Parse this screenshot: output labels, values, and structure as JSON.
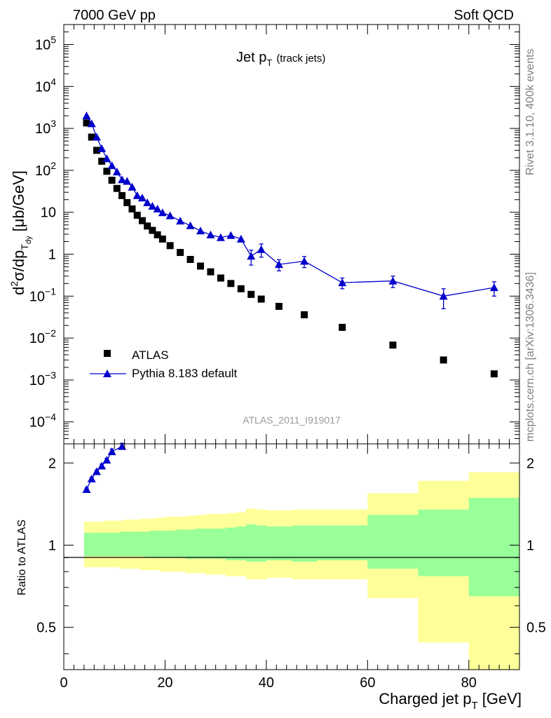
{
  "header": {
    "left": "7000 GeV pp",
    "right": "Soft QCD"
  },
  "side_labels": {
    "rivet": "Rivet 3.1.10,  400k events",
    "url": "mcplots.cern.ch [arXiv:1306.3436]"
  },
  "chart_data": [
    {
      "type": "scatter",
      "panel": "main",
      "title": "Jet p",
      "title_sub": "T",
      "title_note": "(track jets)",
      "analysis_tag": "ATLAS_2011_I919017",
      "ylabel_parts": [
        "d",
        "2",
        "σ/dp",
        "T",
        "dy",
        " [μb/GeV]"
      ],
      "yscale": "log",
      "xlim": [
        0,
        90
      ],
      "ylim": [
        3e-05,
        300000
      ],
      "yticks": [
        {
          "v": 100000,
          "base": "10",
          "exp": "5"
        },
        {
          "v": 10000,
          "base": "10",
          "exp": "4"
        },
        {
          "v": 1000,
          "base": "10",
          "exp": "3"
        },
        {
          "v": 100,
          "base": "10",
          "exp": "2"
        },
        {
          "v": 10,
          "base": "10",
          "exp": ""
        },
        {
          "v": 1,
          "base": "1",
          "exp": ""
        },
        {
          "v": 0.1,
          "base": "10",
          "exp": "−1"
        },
        {
          "v": 0.01,
          "base": "10",
          "exp": "−2"
        },
        {
          "v": 0.001,
          "base": "10",
          "exp": "−3"
        },
        {
          "v": 0.0001,
          "base": "10",
          "exp": "−4"
        }
      ],
      "legend": [
        {
          "name": "ATLAS",
          "marker": "square",
          "color": "#000000"
        },
        {
          "name": "Pythia 8.183 default",
          "marker": "triangle",
          "color": "#0000cc"
        }
      ],
      "series": [
        {
          "name": "ATLAS",
          "color": "#000000",
          "x": [
            4.5,
            5.5,
            6.5,
            7.5,
            8.5,
            9.5,
            10.5,
            11.5,
            12.5,
            13.5,
            14.5,
            15.5,
            16.5,
            17.5,
            18.5,
            19.5,
            21,
            23,
            25,
            27,
            29,
            31,
            33,
            35,
            37,
            39,
            42.5,
            47.5,
            55,
            65,
            75,
            85
          ],
          "y": [
            1350,
            620,
            300,
            165,
            95,
            58,
            37,
            25,
            17,
            12,
            8.5,
            6.3,
            4.7,
            3.7,
            2.9,
            2.3,
            1.6,
            1.1,
            0.75,
            0.52,
            0.38,
            0.27,
            0.2,
            0.15,
            0.11,
            0.085,
            0.057,
            0.036,
            0.018,
            0.0068,
            0.003,
            0.0014
          ]
        },
        {
          "name": "Pythia 8.183 default",
          "color": "#0000cc",
          "x": [
            4.5,
            5.5,
            6.5,
            7.5,
            8.5,
            9.5,
            10.5,
            11.5,
            12.5,
            13.5,
            14.5,
            15.5,
            16.5,
            17.5,
            18.5,
            19.5,
            21,
            23,
            25,
            27,
            29,
            31,
            33,
            35,
            37,
            39,
            42.5,
            47.5,
            55,
            65,
            75,
            85
          ],
          "y": [
            2000,
            1300,
            620,
            330,
            190,
            130,
            92,
            60,
            55,
            40,
            25,
            22,
            17,
            14,
            12,
            9.8,
            8.3,
            6.2,
            4.8,
            3.6,
            2.9,
            2.5,
            2.8,
            2.3,
            0.9,
            1.3,
            0.57,
            0.68,
            0.21,
            0.23,
            0.1,
            0.16
          ],
          "err_lo": [
            0,
            0,
            0,
            0,
            0,
            0,
            0,
            0,
            0,
            0,
            0,
            0,
            0,
            0,
            0,
            0,
            0,
            0,
            0,
            0,
            0,
            0,
            0,
            0,
            0.35,
            0.45,
            0.17,
            0.2,
            0.06,
            0.07,
            0.05,
            0.06
          ],
          "err_hi": [
            0,
            0,
            0,
            0,
            0,
            0,
            0,
            0,
            0,
            0,
            0,
            0,
            0,
            0,
            0,
            0,
            0,
            0,
            0,
            0,
            0,
            0,
            0,
            0,
            0.35,
            0.45,
            0.17,
            0.2,
            0.06,
            0.07,
            0.05,
            0.06
          ]
        }
      ]
    },
    {
      "type": "scatter",
      "panel": "ratio",
      "ylabel": "Ratio to ATLAS",
      "xlabel": "Charged jet p",
      "xlabel_sub": "T",
      "xlabel_unit": " [GeV]",
      "xlim": [
        0,
        90
      ],
      "ylim": [
        0.35,
        2.35
      ],
      "xticks": [
        0,
        20,
        40,
        60,
        80
      ],
      "yticks": [
        0.5,
        1,
        2
      ],
      "yellow_color": "#ffff99",
      "green_color": "#99ff99",
      "bands": [
        {
          "x0": 4,
          "x1": 5,
          "y_lo": 0.83,
          "y_hi": 1.22,
          "g_lo": 0.91,
          "g_hi": 1.11
        },
        {
          "x0": 5,
          "x1": 6,
          "y_lo": 0.83,
          "y_hi": 1.22,
          "g_lo": 0.91,
          "g_hi": 1.11
        },
        {
          "x0": 6,
          "x1": 7,
          "y_lo": 0.83,
          "y_hi": 1.22,
          "g_lo": 0.91,
          "g_hi": 1.11
        },
        {
          "x0": 7,
          "x1": 8,
          "y_lo": 0.83,
          "y_hi": 1.22,
          "g_lo": 0.91,
          "g_hi": 1.11
        },
        {
          "x0": 8,
          "x1": 9,
          "y_lo": 0.83,
          "y_hi": 1.23,
          "g_lo": 0.91,
          "g_hi": 1.11
        },
        {
          "x0": 9,
          "x1": 10,
          "y_lo": 0.83,
          "y_hi": 1.23,
          "g_lo": 0.91,
          "g_hi": 1.11
        },
        {
          "x0": 10,
          "x1": 11,
          "y_lo": 0.83,
          "y_hi": 1.23,
          "g_lo": 0.91,
          "g_hi": 1.11
        },
        {
          "x0": 11,
          "x1": 12,
          "y_lo": 0.82,
          "y_hi": 1.23,
          "g_lo": 0.91,
          "g_hi": 1.12
        },
        {
          "x0": 12,
          "x1": 13,
          "y_lo": 0.82,
          "y_hi": 1.24,
          "g_lo": 0.91,
          "g_hi": 1.12
        },
        {
          "x0": 13,
          "x1": 14,
          "y_lo": 0.82,
          "y_hi": 1.24,
          "g_lo": 0.91,
          "g_hi": 1.12
        },
        {
          "x0": 14,
          "x1": 15,
          "y_lo": 0.82,
          "y_hi": 1.24,
          "g_lo": 0.91,
          "g_hi": 1.12
        },
        {
          "x0": 15,
          "x1": 16,
          "y_lo": 0.81,
          "y_hi": 1.25,
          "g_lo": 0.91,
          "g_hi": 1.12
        },
        {
          "x0": 16,
          "x1": 17,
          "y_lo": 0.81,
          "y_hi": 1.25,
          "g_lo": 0.9,
          "g_hi": 1.12
        },
        {
          "x0": 17,
          "x1": 18,
          "y_lo": 0.81,
          "y_hi": 1.25,
          "g_lo": 0.9,
          "g_hi": 1.13
        },
        {
          "x0": 18,
          "x1": 19,
          "y_lo": 0.81,
          "y_hi": 1.26,
          "g_lo": 0.9,
          "g_hi": 1.13
        },
        {
          "x0": 19,
          "x1": 20,
          "y_lo": 0.8,
          "y_hi": 1.26,
          "g_lo": 0.9,
          "g_hi": 1.13
        },
        {
          "x0": 20,
          "x1": 22,
          "y_lo": 0.8,
          "y_hi": 1.27,
          "g_lo": 0.9,
          "g_hi": 1.13
        },
        {
          "x0": 22,
          "x1": 24,
          "y_lo": 0.8,
          "y_hi": 1.27,
          "g_lo": 0.9,
          "g_hi": 1.14
        },
        {
          "x0": 24,
          "x1": 26,
          "y_lo": 0.79,
          "y_hi": 1.28,
          "g_lo": 0.89,
          "g_hi": 1.14
        },
        {
          "x0": 26,
          "x1": 28,
          "y_lo": 0.79,
          "y_hi": 1.29,
          "g_lo": 0.89,
          "g_hi": 1.15
        },
        {
          "x0": 28,
          "x1": 30,
          "y_lo": 0.78,
          "y_hi": 1.3,
          "g_lo": 0.89,
          "g_hi": 1.15
        },
        {
          "x0": 30,
          "x1": 32,
          "y_lo": 0.78,
          "y_hi": 1.3,
          "g_lo": 0.89,
          "g_hi": 1.15
        },
        {
          "x0": 32,
          "x1": 34,
          "y_lo": 0.77,
          "y_hi": 1.31,
          "g_lo": 0.88,
          "g_hi": 1.16
        },
        {
          "x0": 34,
          "x1": 36,
          "y_lo": 0.77,
          "y_hi": 1.32,
          "g_lo": 0.88,
          "g_hi": 1.17
        },
        {
          "x0": 36,
          "x1": 38,
          "y_lo": 0.75,
          "y_hi": 1.36,
          "g_lo": 0.87,
          "g_hi": 1.19
        },
        {
          "x0": 38,
          "x1": 40,
          "y_lo": 0.75,
          "y_hi": 1.35,
          "g_lo": 0.87,
          "g_hi": 1.18
        },
        {
          "x0": 40,
          "x1": 45,
          "y_lo": 0.76,
          "y_hi": 1.34,
          "g_lo": 0.88,
          "g_hi": 1.17
        },
        {
          "x0": 45,
          "x1": 50,
          "y_lo": 0.75,
          "y_hi": 1.35,
          "g_lo": 0.87,
          "g_hi": 1.18
        },
        {
          "x0": 50,
          "x1": 60,
          "y_lo": 0.75,
          "y_hi": 1.35,
          "g_lo": 0.88,
          "g_hi": 1.18
        },
        {
          "x0": 60,
          "x1": 70,
          "y_lo": 0.64,
          "y_hi": 1.55,
          "g_lo": 0.82,
          "g_hi": 1.29
        },
        {
          "x0": 70,
          "x1": 80,
          "y_lo": 0.44,
          "y_hi": 1.72,
          "g_lo": 0.77,
          "g_hi": 1.35
        },
        {
          "x0": 80,
          "x1": 90,
          "y_lo": 0.3,
          "y_hi": 1.85,
          "g_lo": 0.65,
          "g_hi": 1.49
        }
      ],
      "series": [
        {
          "name": "Pythia 8.183 default",
          "color": "#0000cc",
          "x": [
            4.5,
            5.5,
            6.5,
            7.5,
            8.5,
            9.5,
            11.5
          ],
          "y": [
            1.6,
            1.75,
            1.86,
            1.95,
            2.05,
            2.2,
            2.3
          ],
          "err_lo": [
            0.02,
            0.02,
            0.02,
            0.03,
            0.03,
            0.05,
            0.06
          ],
          "err_hi": [
            0.02,
            0.02,
            0.02,
            0.03,
            0.03,
            0.05,
            0.06
          ]
        }
      ]
    }
  ]
}
